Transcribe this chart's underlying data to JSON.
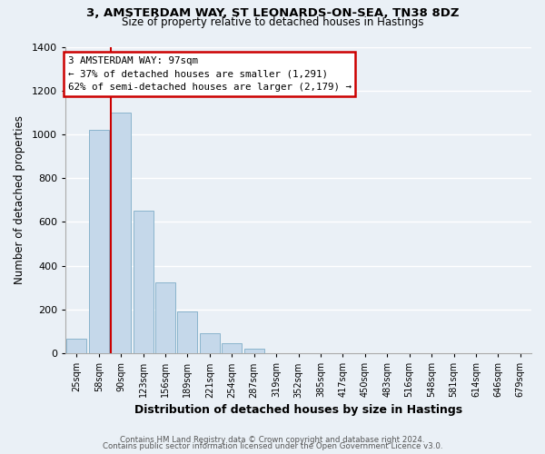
{
  "title1": "3, AMSTERDAM WAY, ST LEONARDS-ON-SEA, TN38 8DZ",
  "title2": "Size of property relative to detached houses in Hastings",
  "xlabel": "Distribution of detached houses by size in Hastings",
  "ylabel": "Number of detached properties",
  "bar_labels": [
    "25sqm",
    "58sqm",
    "90sqm",
    "123sqm",
    "156sqm",
    "189sqm",
    "221sqm",
    "254sqm",
    "287sqm",
    "319sqm",
    "352sqm",
    "385sqm",
    "417sqm",
    "450sqm",
    "483sqm",
    "516sqm",
    "548sqm",
    "581sqm",
    "614sqm",
    "646sqm",
    "679sqm"
  ],
  "bar_values": [
    65,
    1020,
    1100,
    650,
    325,
    190,
    90,
    48,
    20,
    0,
    0,
    0,
    0,
    0,
    0,
    0,
    0,
    0,
    0,
    0,
    0
  ],
  "bar_color": "#c5d8ea",
  "bar_edge_color": "#8ab4cc",
  "ylim": [
    0,
    1400
  ],
  "yticks": [
    0,
    200,
    400,
    600,
    800,
    1000,
    1200,
    1400
  ],
  "red_line_bar_index": 2,
  "marker_label": "3 AMSTERDAM WAY: 97sqm",
  "annotation_line1": "← 37% of detached houses are smaller (1,291)",
  "annotation_line2": "62% of semi-detached houses are larger (2,179) →",
  "annotation_box_color": "#ffffff",
  "annotation_box_edge_color": "#cc0000",
  "marker_line_color": "#cc0000",
  "footer1": "Contains HM Land Registry data © Crown copyright and database right 2024.",
  "footer2": "Contains public sector information licensed under the Open Government Licence v3.0.",
  "background_color": "#eaf0f6",
  "grid_color": "#ffffff",
  "title1_fontsize": 9.5,
  "title2_fontsize": 8.5
}
